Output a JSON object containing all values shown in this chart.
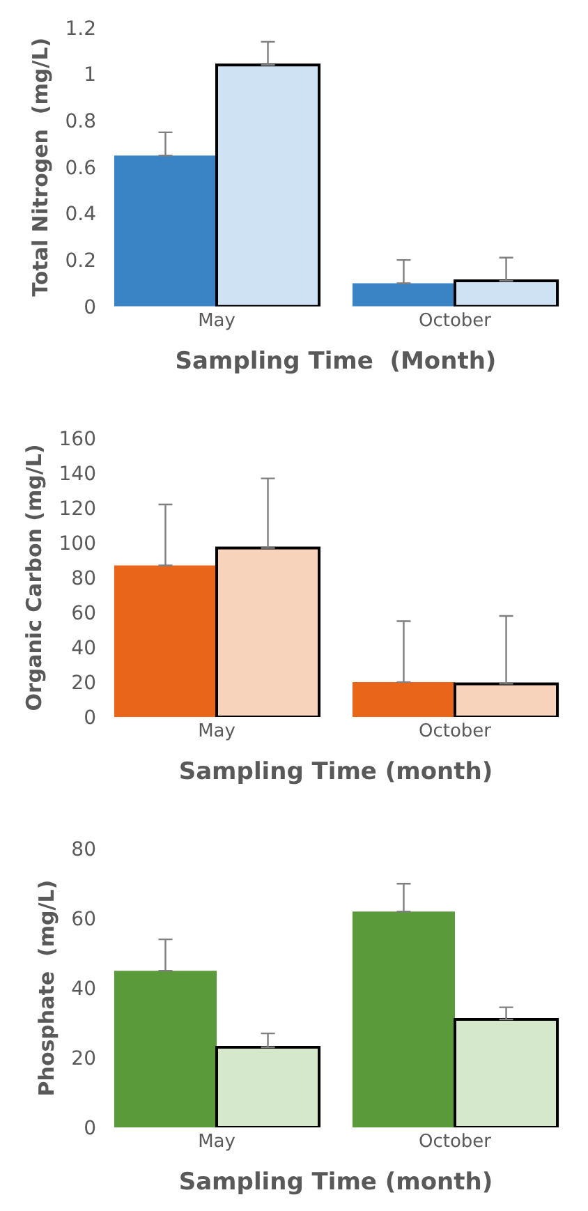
{
  "chart_data": [
    {
      "type": "bar",
      "categories": [
        "May",
        "October"
      ],
      "xlabel": "Sampling Time  (Month)",
      "ylabel": "Total Nitrogen  (mg/L)",
      "ylim": [
        0,
        1.2
      ],
      "yticks": [
        0,
        0.2,
        0.4,
        0.6,
        0.8,
        1,
        1.2
      ],
      "series": [
        {
          "color": "#3a84c6",
          "values": [
            0.65,
            0.1
          ],
          "errors": [
            [
              0.65,
              0.75
            ],
            [
              0.1,
              0.2
            ]
          ]
        },
        {
          "color": "#cfe2f3",
          "values": [
            1.04,
            0.11
          ],
          "errors": [
            [
              1.04,
              1.14
            ],
            [
              0.11,
              0.21
            ]
          ]
        }
      ]
    },
    {
      "type": "bar",
      "categories": [
        "May",
        "October"
      ],
      "xlabel": "Sampling Time (month)",
      "ylabel": "Organic Carbon (mg/L)",
      "ylim": [
        0,
        160
      ],
      "yticks": [
        0,
        20,
        40,
        60,
        80,
        100,
        120,
        140,
        160
      ],
      "series": [
        {
          "color": "#e8651a",
          "values": [
            87,
            20
          ],
          "errors": [
            [
              87,
              122
            ],
            [
              20,
              55
            ]
          ]
        },
        {
          "color": "#f8d3bb",
          "values": [
            97,
            19
          ],
          "errors": [
            [
              97,
              137
            ],
            [
              19,
              58
            ]
          ]
        }
      ]
    },
    {
      "type": "bar",
      "categories": [
        "May",
        "October"
      ],
      "xlabel": "Sampling Time (month)",
      "ylabel": "Phosphate  (mg/L)",
      "ylim": [
        0,
        80
      ],
      "yticks": [
        0,
        20,
        40,
        60,
        80
      ],
      "series": [
        {
          "color": "#5a9a3a",
          "values": [
            45,
            62
          ],
          "errors": [
            [
              45,
              54
            ],
            [
              62,
              70
            ]
          ]
        },
        {
          "color": "#d5e8cc",
          "values": [
            23,
            31
          ],
          "errors": [
            [
              23,
              27
            ],
            [
              31,
              34.5
            ]
          ]
        }
      ]
    }
  ]
}
